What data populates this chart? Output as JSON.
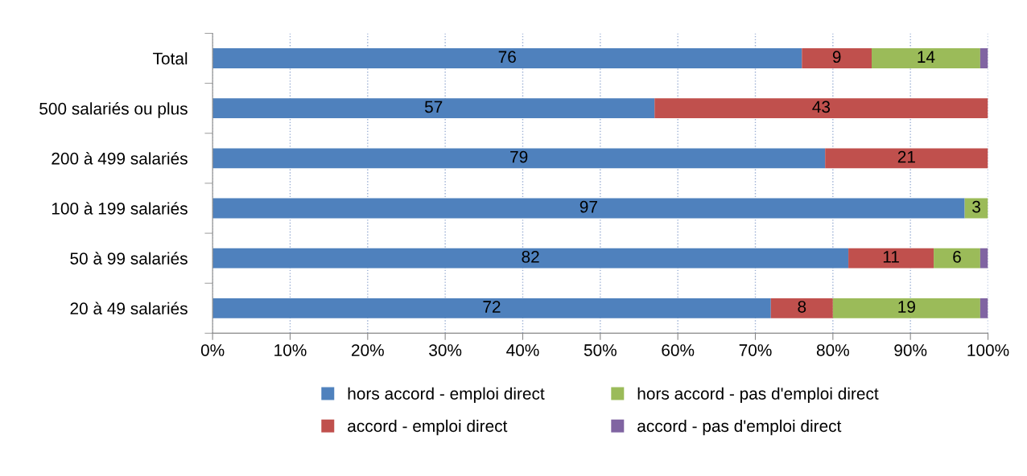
{
  "chart_data": {
    "type": "bar",
    "orientation": "horizontal",
    "stacked": true,
    "categories": [
      "Total",
      "500 salariés ou plus",
      "200 à 499 salariés",
      "100 à 199 salariés",
      "50 à 99 salariés",
      "20 à 49 salariés"
    ],
    "series": [
      {
        "name": "hors accord - emploi direct",
        "color": "#4f81bd",
        "values": [
          76,
          57,
          79,
          97,
          82,
          72
        ],
        "value_labels": [
          "76",
          "57",
          "79",
          "97",
          "82",
          "72"
        ]
      },
      {
        "name": "accord - emploi direct",
        "color": "#c0504d",
        "values": [
          9,
          43,
          21,
          0,
          11,
          8
        ],
        "value_labels": [
          "9",
          "43",
          "21",
          null,
          "11",
          "8"
        ]
      },
      {
        "name": "hors accord - pas d'emploi direct",
        "color": "#9bbb59",
        "values": [
          14,
          0,
          0,
          3,
          6,
          19
        ],
        "value_labels": [
          "14",
          null,
          null,
          "3",
          "6",
          "19"
        ]
      },
      {
        "name": "accord - pas d'emploi direct",
        "color": "#8064a2",
        "values": [
          1,
          0,
          0,
          0,
          1,
          1
        ],
        "value_labels": [
          null,
          null,
          null,
          null,
          null,
          null
        ]
      }
    ],
    "xlim": [
      0,
      100
    ],
    "xticks": [
      {
        "value": 0,
        "label": "0%"
      },
      {
        "value": 10,
        "label": "10%"
      },
      {
        "value": 20,
        "label": "20%"
      },
      {
        "value": 30,
        "label": "30%"
      },
      {
        "value": 40,
        "label": "40%"
      },
      {
        "value": 50,
        "label": "50%"
      },
      {
        "value": 60,
        "label": "60%"
      },
      {
        "value": 70,
        "label": "70%"
      },
      {
        "value": 80,
        "label": "80%"
      },
      {
        "value": 90,
        "label": "90%"
      },
      {
        "value": 100,
        "label": "100%"
      }
    ],
    "grid": "x",
    "legend": "bottom"
  }
}
